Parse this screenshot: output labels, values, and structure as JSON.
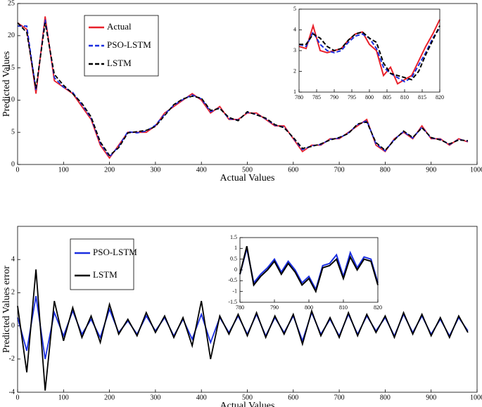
{
  "chart_data": [
    {
      "type": "line",
      "xlabel": "Actual Values",
      "ylabel": "Predicted Values",
      "legend": "upper left",
      "xlim": [
        0,
        1000
      ],
      "ylim": [
        0,
        25
      ],
      "xticks": [
        0,
        100,
        200,
        300,
        400,
        500,
        600,
        700,
        800,
        900,
        1000
      ],
      "yticks": [
        0,
        5,
        10,
        15,
        20,
        25
      ],
      "x": [
        0,
        20,
        40,
        60,
        80,
        100,
        120,
        140,
        160,
        180,
        200,
        220,
        240,
        260,
        280,
        300,
        320,
        340,
        360,
        380,
        400,
        420,
        440,
        460,
        480,
        500,
        520,
        540,
        560,
        580,
        600,
        620,
        640,
        660,
        680,
        700,
        720,
        740,
        760,
        780,
        800,
        820,
        840,
        860,
        880,
        900,
        920,
        940,
        960,
        980
      ],
      "series": [
        {
          "name": "Actual",
          "color": "#e8202a",
          "style": "solid",
          "values": [
            22,
            21,
            11,
            23,
            13,
            12,
            11,
            9,
            7,
            3,
            1,
            3,
            5,
            5,
            5,
            6,
            8,
            9,
            10,
            11,
            10,
            8,
            9,
            7,
            7,
            8,
            8,
            7,
            6,
            6,
            4,
            2,
            3,
            3,
            4,
            4,
            5,
            6,
            7,
            3,
            2,
            4,
            5,
            4,
            6,
            4,
            4,
            3,
            4,
            3.5
          ]
        },
        {
          "name": "PSO-LSTM",
          "color": "#1a2ee0",
          "style": "dashed",
          "values": [
            21.5,
            21.5,
            11.5,
            22.5,
            13.5,
            12,
            11.2,
            9.3,
            7.2,
            3.3,
            1.2,
            2.8,
            5.1,
            4.9,
            5.2,
            6.1,
            7.8,
            9.2,
            10.1,
            10.8,
            10.2,
            8.2,
            8.8,
            7.1,
            6.9,
            8.1,
            7.8,
            7.1,
            6.1,
            5.8,
            4.1,
            2.3,
            2.9,
            3.1,
            3.9,
            4.1,
            4.9,
            6.2,
            6.8,
            3.2,
            2.1,
            3.9,
            5.1,
            4.1,
            5.8,
            4.1,
            3.9,
            3.1,
            3.9,
            3.6
          ]
        },
        {
          "name": "LSTM",
          "color": "#000000",
          "style": "dashed",
          "values": [
            22,
            20.5,
            11.8,
            22,
            14,
            12.3,
            11,
            9.5,
            7.4,
            3.5,
            1.4,
            2.6,
            4.9,
            5.1,
            5.3,
            5.9,
            7.6,
            9.3,
            10.2,
            10.6,
            10.3,
            8.4,
            8.7,
            7.3,
            6.8,
            8.2,
            7.7,
            7.2,
            6.2,
            5.7,
            4.2,
            2.5,
            2.8,
            3.2,
            3.8,
            4.2,
            4.8,
            6.3,
            6.6,
            3.4,
            2.2,
            3.8,
            5.2,
            4.2,
            5.7,
            4.2,
            3.8,
            3.2,
            3.8,
            3.7
          ]
        }
      ]
    },
    {
      "type": "line",
      "xlim": [
        780,
        820
      ],
      "ylim": [
        1,
        5
      ],
      "xticks": [
        780,
        785,
        790,
        795,
        800,
        805,
        810,
        815,
        820
      ],
      "yticks": [
        1,
        2,
        3,
        4,
        5
      ],
      "x": [
        780,
        782,
        784,
        786,
        788,
        790,
        792,
        794,
        796,
        798,
        800,
        802,
        804,
        806,
        808,
        810,
        812,
        814,
        816,
        818,
        820
      ],
      "series": [
        {
          "color": "#e8202a",
          "style": "solid",
          "values": [
            3.2,
            3.1,
            4.2,
            3.0,
            2.9,
            3.0,
            3.1,
            3.5,
            3.8,
            3.9,
            3.3,
            3.0,
            1.8,
            2.2,
            1.4,
            1.6,
            1.8,
            2.5,
            3.2,
            3.8,
            4.5
          ]
        },
        {
          "color": "#1a2ee0",
          "style": "dashed",
          "values": [
            3.3,
            3.2,
            3.9,
            3.3,
            3.0,
            2.9,
            3.0,
            3.4,
            3.7,
            3.8,
            3.6,
            3.1,
            2.2,
            1.9,
            1.7,
            1.5,
            1.7,
            2.3,
            2.9,
            3.6,
            4.1
          ]
        },
        {
          "color": "#000000",
          "style": "dashed",
          "values": [
            3.3,
            3.3,
            3.8,
            3.6,
            3.2,
            3.0,
            3.1,
            3.5,
            3.8,
            3.9,
            3.6,
            3.4,
            2.4,
            1.9,
            1.8,
            1.7,
            1.6,
            2.0,
            2.8,
            3.5,
            4.2
          ]
        }
      ]
    },
    {
      "type": "line",
      "xlabel": "Actual Values",
      "ylabel": "Predicted Values error",
      "legend": "upper left",
      "xlim": [
        0,
        1000
      ],
      "ylim": [
        -4,
        6
      ],
      "xticks": [
        0,
        100,
        200,
        300,
        400,
        500,
        600,
        700,
        800,
        900,
        1000
      ],
      "yticks": [
        -4,
        -2,
        0,
        2,
        4
      ],
      "x": [
        0,
        20,
        40,
        60,
        80,
        100,
        120,
        140,
        160,
        180,
        200,
        220,
        240,
        260,
        280,
        300,
        320,
        340,
        360,
        380,
        400,
        420,
        440,
        460,
        480,
        500,
        520,
        540,
        560,
        580,
        600,
        620,
        640,
        660,
        680,
        700,
        720,
        740,
        760,
        780,
        800,
        820,
        840,
        860,
        880,
        900,
        920,
        940,
        960,
        980
      ],
      "series": [
        {
          "name": "PSO-LSTM",
          "color": "#1a2ee0",
          "style": "solid",
          "values": [
            0.5,
            -1.5,
            1.8,
            -2.0,
            0.8,
            -0.6,
            0.9,
            -0.5,
            0.4,
            -0.7,
            1.0,
            -0.4,
            0.3,
            -0.5,
            0.6,
            -0.3,
            0.5,
            -0.6,
            0.4,
            -0.8,
            0.7,
            -1.0,
            0.5,
            -0.4,
            0.6,
            -0.5,
            0.7,
            -0.6,
            0.5,
            -0.4,
            0.6,
            -0.9,
            0.8,
            -0.5,
            0.4,
            -0.6,
            0.7,
            -0.5,
            0.6,
            -0.3,
            0.5,
            -0.6,
            0.7,
            -0.4,
            0.6,
            -0.5,
            0.4,
            -0.6,
            0.5,
            -0.3
          ]
        },
        {
          "name": "LSTM",
          "color": "#000000",
          "style": "solid",
          "values": [
            1.2,
            -2.8,
            3.4,
            -3.9,
            1.5,
            -0.9,
            1.1,
            -0.7,
            0.6,
            -1.0,
            1.3,
            -0.5,
            0.4,
            -0.6,
            0.8,
            -0.4,
            0.6,
            -0.7,
            0.5,
            -1.2,
            1.5,
            -2.0,
            0.6,
            -0.5,
            0.7,
            -0.6,
            0.8,
            -0.7,
            0.6,
            -0.5,
            0.7,
            -1.1,
            0.9,
            -0.6,
            0.5,
            -0.7,
            0.8,
            -0.6,
            0.7,
            -0.4,
            0.6,
            -0.7,
            0.8,
            -0.5,
            0.7,
            -0.6,
            0.5,
            -0.7,
            0.6,
            -0.4
          ]
        }
      ]
    },
    {
      "type": "line",
      "xlim": [
        780,
        820
      ],
      "ylim": [
        -1.5,
        1.5
      ],
      "xticks": [
        780,
        790,
        800,
        810,
        820
      ],
      "yticks": [
        -1.5,
        -1,
        -0.5,
        0,
        0.5,
        1,
        1.5
      ],
      "x": [
        780,
        782,
        784,
        786,
        788,
        790,
        792,
        794,
        796,
        798,
        800,
        802,
        804,
        806,
        808,
        810,
        812,
        814,
        816,
        818,
        820
      ],
      "series": [
        {
          "color": "#1a2ee0",
          "style": "solid",
          "values": [
            -0.2,
            1.0,
            -0.6,
            -0.2,
            0.1,
            0.5,
            -0.1,
            0.4,
            0.0,
            -0.6,
            -0.3,
            -0.9,
            0.2,
            0.3,
            0.7,
            -0.3,
            0.8,
            0.1,
            0.6,
            0.5,
            -0.6
          ]
        },
        {
          "color": "#000000",
          "style": "solid",
          "values": [
            -0.2,
            1.1,
            -0.7,
            -0.3,
            0.0,
            0.4,
            -0.2,
            0.3,
            -0.1,
            -0.7,
            -0.4,
            -1.0,
            0.1,
            0.2,
            0.5,
            -0.4,
            0.6,
            0.0,
            0.5,
            0.4,
            -0.7
          ]
        }
      ]
    }
  ]
}
